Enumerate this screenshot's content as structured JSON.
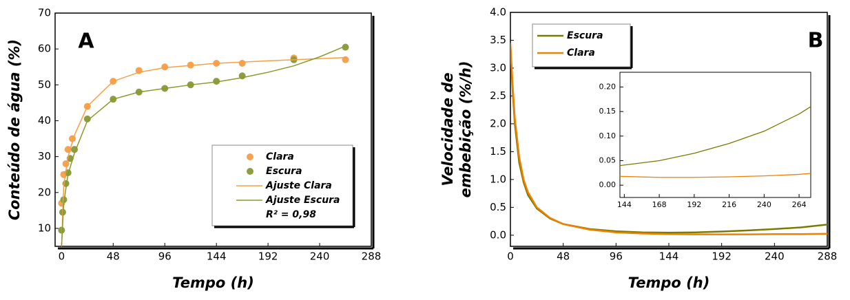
{
  "chart_data": [
    {
      "type": "scatter",
      "label": "A",
      "xlabel": "Tempo (h)",
      "ylabel": [
        "Conteúdo de água (%)"
      ],
      "xlim": [
        -6,
        288
      ],
      "ylim": [
        5,
        70
      ],
      "xticks": [
        0,
        48,
        96,
        144,
        192,
        240,
        288
      ],
      "yticks": [
        10,
        20,
        30,
        40,
        50,
        60,
        70
      ],
      "legend": "lower right",
      "note": "R² = 0,98",
      "series": [
        {
          "name": "Clara",
          "mode": "markers",
          "color": "#f5a352",
          "x": [
            0,
            2,
            4,
            6,
            10,
            24,
            48,
            72,
            96,
            120,
            144,
            168,
            216,
            264
          ],
          "values": [
            17,
            25,
            28,
            32,
            35,
            44,
            51,
            54,
            55,
            55.5,
            56,
            56,
            57.5,
            57
          ]
        },
        {
          "name": "Escura",
          "mode": "markers",
          "color": "#8f9d42",
          "x": [
            0,
            1,
            2,
            4,
            6,
            8,
            12,
            24,
            48,
            72,
            96,
            120,
            144,
            168,
            216,
            264
          ],
          "values": [
            9.5,
            14.5,
            18,
            22.5,
            25.5,
            29.5,
            32,
            40.5,
            46,
            48,
            49,
            50,
            51,
            52.5,
            57,
            60.5
          ]
        },
        {
          "name": "Ajuste Clara",
          "mode": "line",
          "color": "#f7a040",
          "x": [
            0,
            2,
            6,
            12,
            24,
            48,
            72,
            96,
            144,
            192,
            240,
            264
          ],
          "values": [
            5,
            22,
            30,
            36,
            44,
            51,
            53.5,
            54.8,
            56,
            56.7,
            57.3,
            57.6
          ]
        },
        {
          "name": "Ajuste Escura",
          "mode": "line",
          "color": "#8a9a2a",
          "x": [
            0,
            2,
            6,
            12,
            24,
            48,
            72,
            96,
            120,
            144,
            168,
            192,
            216,
            240,
            264
          ],
          "values": [
            5,
            17,
            25,
            31,
            40,
            46,
            48,
            49,
            50,
            50.8,
            52,
            53.5,
            55.3,
            57.8,
            60.8
          ]
        }
      ]
    },
    {
      "type": "line",
      "label": "B",
      "xlabel": "Tempo (h)",
      "ylabel": [
        "Velocidade de",
        "embebição (%/h)"
      ],
      "xlim": [
        0,
        288
      ],
      "ylim": [
        -0.2,
        4.0
      ],
      "xticks": [
        0,
        48,
        96,
        144,
        192,
        240,
        288
      ],
      "yticks": [
        {
          "value": 0,
          "label": "0.0"
        },
        0.5,
        {
          "value": 1,
          "label": "1.0"
        },
        1.5,
        {
          "value": 2,
          "label": "2.0"
        },
        2.5,
        {
          "value": 3,
          "label": "3.0"
        },
        3.5,
        {
          "value": 4,
          "label": "4.0"
        }
      ],
      "legend": "upper left",
      "x": [
        0,
        2,
        4,
        8,
        12,
        16,
        24,
        36,
        48,
        72,
        96,
        120,
        144,
        168,
        192,
        216,
        240,
        264,
        288
      ],
      "series": [
        {
          "name": "Escura",
          "color": "#7a7a00",
          "values": [
            3.4,
            2.6,
            2.0,
            1.3,
            0.95,
            0.72,
            0.48,
            0.3,
            0.2,
            0.11,
            0.07,
            0.05,
            0.045,
            0.05,
            0.065,
            0.085,
            0.11,
            0.14,
            0.19
          ]
        },
        {
          "name": "Clara",
          "color": "#f08000",
          "values": [
            3.45,
            2.7,
            2.1,
            1.4,
            1.0,
            0.77,
            0.5,
            0.31,
            0.2,
            0.1,
            0.05,
            0.03,
            0.02,
            0.015,
            0.015,
            0.015,
            0.02,
            0.02,
            0.025
          ]
        }
      ]
    },
    {
      "type": "line",
      "xlim": [
        141,
        272
      ],
      "ylim": [
        -0.025,
        0.23
      ],
      "xticks": [
        144,
        168,
        192,
        216,
        240,
        264
      ],
      "yticks": [
        {
          "value": 0,
          "label": "0.00"
        },
        0.05,
        {
          "value": 0.1,
          "label": "0.10"
        },
        0.15,
        {
          "value": 0.2,
          "label": "0.20"
        }
      ],
      "x": [
        141,
        168,
        192,
        216,
        240,
        264,
        272
      ],
      "series": [
        {
          "color": "#7a7a00",
          "values": [
            0.04,
            0.05,
            0.065,
            0.085,
            0.11,
            0.145,
            0.16
          ]
        },
        {
          "color": "#f08000",
          "values": [
            0.018,
            0.016,
            0.016,
            0.017,
            0.019,
            0.022,
            0.024
          ]
        }
      ]
    }
  ]
}
